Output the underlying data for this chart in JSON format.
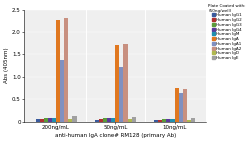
{
  "title": "anti-human IgA clone# RM128 (primary Ab)",
  "ylabel": "Abs (405nm)",
  "legend_title": "Plate Coated with:\n(50ng/well)",
  "groups": [
    "200ng/mL",
    "50ng/mL",
    "10ng/mL"
  ],
  "series": [
    {
      "label": "Human IgG1",
      "color": "#3a5a9c",
      "values": [
        0.05,
        0.04,
        0.03
      ]
    },
    {
      "label": "Human IgG2",
      "color": "#b03030",
      "values": [
        0.06,
        0.05,
        0.04
      ]
    },
    {
      "label": "Human IgG3",
      "color": "#5a9c3a",
      "values": [
        0.09,
        0.07,
        0.05
      ]
    },
    {
      "label": "Human IgG4",
      "color": "#5a3a9c",
      "values": [
        0.09,
        0.07,
        0.05
      ]
    },
    {
      "label": "Human IgM",
      "color": "#2090b0",
      "values": [
        0.09,
        0.07,
        0.05
      ]
    },
    {
      "label": "Human IgA",
      "color": "#e07820",
      "values": [
        2.27,
        1.71,
        0.75
      ]
    },
    {
      "label": "Human IgA1",
      "color": "#8090c0",
      "values": [
        1.38,
        1.22,
        0.63
      ]
    },
    {
      "label": "Human IgA2",
      "color": "#c89080",
      "values": [
        2.31,
        1.74,
        0.72
      ]
    },
    {
      "label": "Human IgD",
      "color": "#b0b850",
      "values": [
        0.06,
        0.05,
        0.04
      ]
    },
    {
      "label": "Human IgE",
      "color": "#a0a0a0",
      "values": [
        0.12,
        0.1,
        0.07
      ]
    }
  ],
  "ylim": [
    0,
    2.5
  ],
  "yticks": [
    0,
    0.5,
    1.0,
    1.5,
    2.0,
    2.5
  ],
  "background_color": "#ffffff",
  "plot_bg_color": "#efefef"
}
